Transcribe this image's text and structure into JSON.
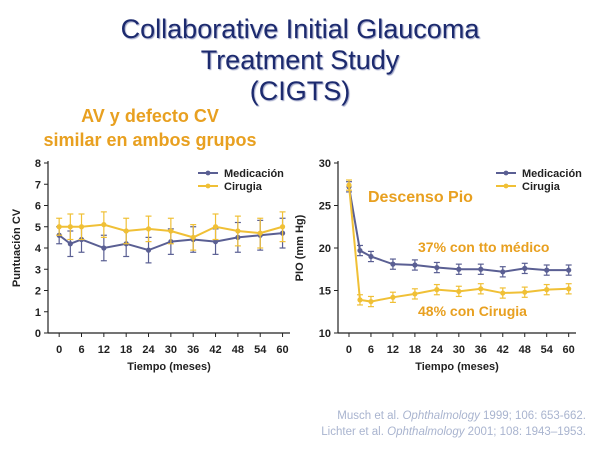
{
  "slide": {
    "title_lines": [
      "Collaborative Initial Glaucoma",
      "Treatment Study",
      "(CIGTS)"
    ],
    "subtitle_lines": [
      "AV y defecto CV",
      "similar en ambos grupos"
    ],
    "references": [
      {
        "prefix": "Musch et al. ",
        "journal": "Ophthalmology",
        "suffix": " 1999; 106: 653-662."
      },
      {
        "prefix": "Lichter et al. ",
        "journal": "Ophthalmology",
        "suffix": " 2001; 108: 1943–1953."
      }
    ]
  },
  "colors": {
    "medicacion": "#5a5f93",
    "cirugia": "#f0c036",
    "annotation": "#e8a020",
    "title": "#1c2a6e"
  },
  "chart_data": [
    {
      "type": "line",
      "xlabel": "Tiempo (meses)",
      "ylabel": "Puntuación CV",
      "x": [
        0,
        3,
        6,
        12,
        18,
        24,
        30,
        36,
        42,
        48,
        54,
        60
      ],
      "x_ticks": [
        0,
        6,
        12,
        18,
        24,
        30,
        36,
        42,
        48,
        54,
        60
      ],
      "xlim": [
        -3,
        62
      ],
      "ylim": [
        0,
        8
      ],
      "y_ticks": [
        0,
        1,
        2,
        3,
        4,
        5,
        6,
        7,
        8
      ],
      "legend_position": "top-right",
      "series": [
        {
          "name": "Medicación",
          "values": [
            4.6,
            4.2,
            4.4,
            4.0,
            4.2,
            3.9,
            4.3,
            4.4,
            4.3,
            4.5,
            4.6,
            4.7
          ],
          "error": [
            0.4,
            0.6,
            0.6,
            0.6,
            0.6,
            0.6,
            0.6,
            0.6,
            0.6,
            0.7,
            0.7,
            0.7
          ],
          "color": "#5a5f93"
        },
        {
          "name": "Cirugia",
          "values": [
            5.0,
            5.0,
            5.0,
            5.1,
            4.8,
            4.9,
            4.8,
            4.5,
            5.0,
            4.8,
            4.7,
            5.0
          ],
          "error": [
            0.4,
            0.6,
            0.6,
            0.6,
            0.6,
            0.6,
            0.6,
            0.6,
            0.6,
            0.7,
            0.7,
            0.7
          ],
          "color": "#f0c036"
        }
      ]
    },
    {
      "type": "line",
      "xlabel": "Tiempo (meses)",
      "ylabel": "PIO (mm Hg)",
      "x": [
        0,
        3,
        6,
        12,
        18,
        24,
        30,
        36,
        42,
        48,
        54,
        60
      ],
      "x_ticks": [
        0,
        6,
        12,
        18,
        24,
        30,
        36,
        42,
        48,
        54,
        60
      ],
      "xlim": [
        -3,
        62
      ],
      "ylim": [
        10,
        30
      ],
      "y_ticks": [
        10,
        15,
        20,
        25,
        30
      ],
      "legend_position": "top-right",
      "annotations": [
        "Descenso Pio",
        "37% con tto médico",
        "48% con Cirugia"
      ],
      "series": [
        {
          "name": "Medicación",
          "values": [
            27.2,
            19.7,
            19.0,
            18.1,
            18.0,
            17.7,
            17.5,
            17.5,
            17.2,
            17.6,
            17.4,
            17.4
          ],
          "error": [
            0.6,
            0.6,
            0.6,
            0.6,
            0.6,
            0.6,
            0.6,
            0.6,
            0.6,
            0.6,
            0.6,
            0.6
          ],
          "color": "#5a5f93"
        },
        {
          "name": "Cirugia",
          "values": [
            27.4,
            13.9,
            13.7,
            14.2,
            14.6,
            15.1,
            14.9,
            15.2,
            14.7,
            14.8,
            15.1,
            15.2
          ],
          "error": [
            0.6,
            0.6,
            0.6,
            0.6,
            0.6,
            0.6,
            0.6,
            0.6,
            0.6,
            0.6,
            0.6,
            0.6
          ],
          "color": "#f0c036"
        }
      ]
    }
  ]
}
